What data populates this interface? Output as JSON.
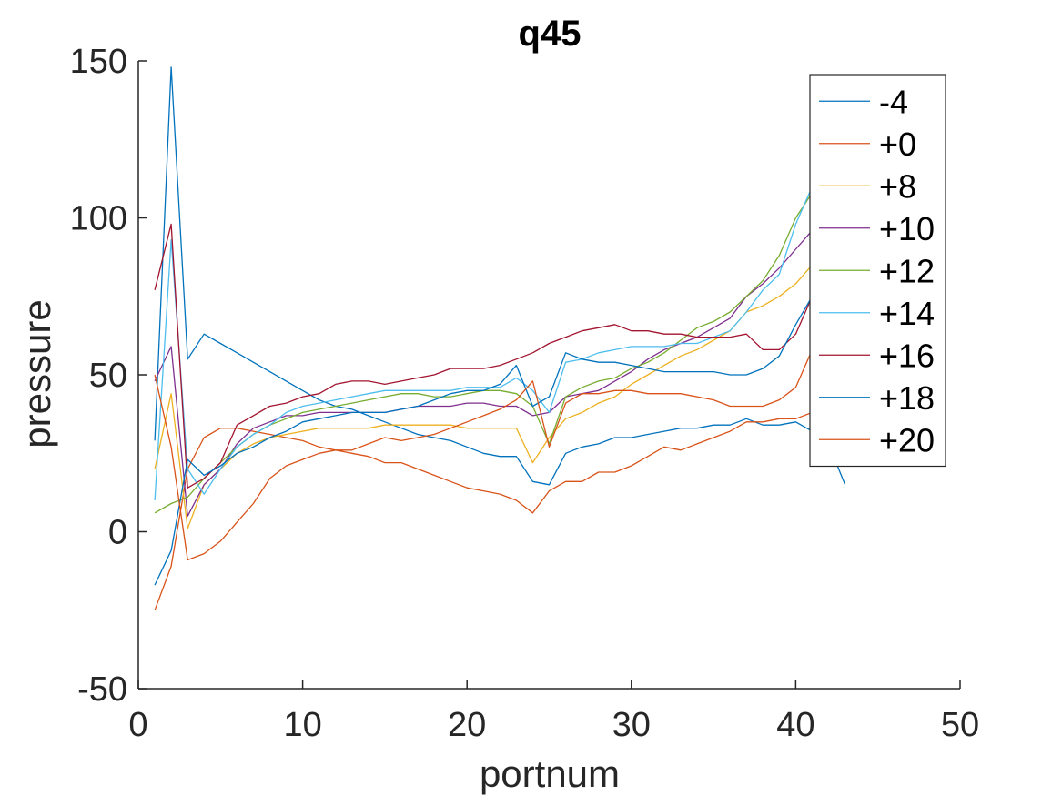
{
  "chart_data": {
    "type": "line",
    "title": "q45",
    "xlabel": "portnum",
    "ylabel": "pressure",
    "xlim": [
      0,
      50
    ],
    "ylim": [
      -50,
      150
    ],
    "xticks": [
      0,
      10,
      20,
      30,
      40,
      50
    ],
    "yticks": [
      -50,
      0,
      50,
      100,
      150
    ],
    "grid": false,
    "legend_position": "top-right",
    "series": [
      {
        "name": "-4",
        "color": "#0072BD",
        "x": [
          1,
          2,
          3,
          4,
          5,
          6,
          7,
          8,
          9,
          10,
          11,
          12,
          13,
          14,
          15,
          16,
          17,
          18,
          19,
          20,
          21,
          22,
          23,
          24,
          25,
          26,
          27,
          28,
          29,
          30,
          31,
          32,
          33,
          34,
          35,
          36,
          37,
          38,
          39,
          40,
          41,
          42,
          43
        ],
        "y": [
          29,
          148,
          55,
          63,
          60,
          57,
          54,
          51,
          48,
          45,
          42,
          40,
          39,
          37,
          35,
          33,
          31,
          30,
          29,
          27,
          25,
          24,
          24,
          16,
          15,
          25,
          27,
          28,
          30,
          30,
          31,
          32,
          33,
          33,
          34,
          34,
          36,
          34,
          34,
          35,
          32,
          28,
          15
        ]
      },
      {
        "name": "+0",
        "color": "#D95319",
        "x": [
          1,
          2,
          3,
          4,
          5,
          6,
          7,
          8,
          9,
          10,
          11,
          12,
          13,
          14,
          15,
          16,
          17,
          18,
          19,
          20,
          21,
          22,
          23,
          24,
          25,
          26,
          27,
          28,
          29,
          30,
          31,
          32,
          33,
          34,
          35,
          36,
          37,
          38,
          39,
          40,
          41
        ],
        "y": [
          -25,
          -11,
          20,
          30,
          33,
          33,
          32,
          31,
          30,
          29,
          27,
          26,
          25,
          24,
          22,
          22,
          20,
          18,
          16,
          14,
          13,
          12,
          10,
          6,
          13,
          16,
          16,
          19,
          19,
          21,
          24,
          27,
          26,
          28,
          30,
          32,
          35,
          35,
          36,
          36,
          38
        ]
      },
      {
        "name": "+8",
        "color": "#EDB120",
        "x": [
          1,
          2,
          3,
          4,
          5,
          6,
          7,
          8,
          9,
          10,
          11,
          12,
          13,
          14,
          15,
          16,
          17,
          18,
          19,
          20,
          21,
          22,
          23,
          24,
          25,
          26,
          27,
          28,
          29,
          30,
          31,
          32,
          33,
          34,
          35,
          36,
          37,
          38,
          39,
          40,
          41
        ],
        "y": [
          20,
          44,
          1,
          15,
          20,
          25,
          28,
          30,
          31,
          32,
          33,
          33,
          33,
          33,
          34,
          34,
          34,
          34,
          34,
          33,
          33,
          33,
          33,
          22,
          30,
          36,
          38,
          41,
          43,
          47,
          50,
          53,
          56,
          58,
          61,
          64,
          70,
          72,
          75,
          79,
          85
        ]
      },
      {
        "name": "+10",
        "color": "#7E2F8E",
        "x": [
          1,
          2,
          3,
          4,
          5,
          6,
          7,
          8,
          9,
          10,
          11,
          12,
          13,
          14,
          15,
          16,
          17,
          18,
          19,
          20,
          21,
          22,
          23,
          24,
          25,
          26,
          27,
          28,
          29,
          30,
          31,
          32,
          33,
          34,
          35,
          36,
          37,
          38,
          39,
          40,
          41
        ],
        "y": [
          48,
          59,
          5,
          15,
          20,
          28,
          33,
          35,
          37,
          37,
          38,
          38,
          38,
          38,
          38,
          39,
          40,
          40,
          40,
          41,
          41,
          40,
          40,
          37,
          38,
          43,
          44,
          45,
          48,
          51,
          55,
          58,
          60,
          62,
          65,
          68,
          75,
          79,
          84,
          90,
          96
        ]
      },
      {
        "name": "+12",
        "color": "#77AC30",
        "x": [
          1,
          2,
          3,
          4,
          5,
          6,
          7,
          8,
          9,
          10,
          11,
          12,
          13,
          14,
          15,
          16,
          17,
          18,
          19,
          20,
          21,
          22,
          23,
          24,
          25,
          26,
          27,
          28,
          29,
          30,
          31,
          32,
          33,
          34,
          35,
          36,
          37,
          38,
          39,
          40,
          41
        ],
        "y": [
          6,
          9,
          11,
          17,
          22,
          27,
          31,
          34,
          36,
          38,
          39,
          40,
          41,
          42,
          43,
          44,
          44,
          43,
          43,
          44,
          45,
          45,
          44,
          40,
          28,
          43,
          46,
          48,
          49,
          52,
          54,
          57,
          61,
          65,
          67,
          70,
          75,
          80,
          88,
          100,
          108
        ]
      },
      {
        "name": "+14",
        "color": "#4DBEEE",
        "x": [
          1,
          2,
          3,
          4,
          5,
          6,
          7,
          8,
          9,
          10,
          11,
          12,
          13,
          14,
          15,
          16,
          17,
          18,
          19,
          20,
          21,
          22,
          23,
          24,
          25,
          26,
          27,
          28,
          29,
          30,
          31,
          32,
          33,
          34,
          35,
          36,
          37,
          38,
          39,
          40,
          41
        ],
        "y": [
          10,
          93,
          20,
          12,
          20,
          27,
          31,
          34,
          38,
          40,
          41,
          42,
          43,
          44,
          45,
          45,
          45,
          45,
          45,
          46,
          46,
          46,
          49,
          45,
          38,
          54,
          55,
          57,
          58,
          59,
          59,
          59,
          60,
          60,
          62,
          64,
          70,
          77,
          82,
          98,
          110
        ]
      },
      {
        "name": "+16",
        "color": "#A2142F",
        "x": [
          1,
          2,
          3,
          4,
          5,
          6,
          7,
          8,
          9,
          10,
          11,
          12,
          13,
          14,
          15,
          16,
          17,
          18,
          19,
          20,
          21,
          22,
          23,
          24,
          25,
          26,
          27,
          28,
          29,
          30,
          31,
          32,
          33,
          34,
          35,
          36,
          37,
          38,
          39,
          40,
          41
        ],
        "y": [
          77,
          98,
          14,
          17,
          22,
          34,
          37,
          40,
          41,
          43,
          44,
          47,
          48,
          48,
          47,
          48,
          49,
          50,
          52,
          52,
          52,
          53,
          55,
          57,
          60,
          62,
          64,
          65,
          66,
          64,
          64,
          63,
          63,
          62,
          62,
          62,
          63,
          58,
          58,
          63,
          75
        ]
      },
      {
        "name": "+18",
        "color": "#0072BD",
        "x": [
          1,
          2,
          3,
          4,
          5,
          6,
          7,
          8,
          9,
          10,
          11,
          12,
          13,
          14,
          15,
          16,
          17,
          18,
          19,
          20,
          21,
          22,
          23,
          24,
          25,
          26,
          27,
          28,
          29,
          30,
          31,
          32,
          33,
          34,
          35,
          36,
          37,
          38,
          39,
          40,
          41
        ],
        "y": [
          -17,
          -6,
          23,
          18,
          21,
          25,
          27,
          30,
          32,
          35,
          36,
          37,
          38,
          38,
          38,
          39,
          40,
          42,
          44,
          45,
          45,
          47,
          53,
          40,
          43,
          57,
          55,
          54,
          54,
          53,
          52,
          51,
          51,
          51,
          51,
          50,
          50,
          52,
          56,
          66,
          75
        ]
      },
      {
        "name": "+20",
        "color": "#D95319",
        "x": [
          1,
          2,
          3,
          4,
          5,
          6,
          7,
          8,
          9,
          10,
          11,
          12,
          13,
          14,
          15,
          16,
          17,
          18,
          19,
          20,
          21,
          22,
          23,
          24,
          25,
          26,
          27,
          28,
          29,
          30,
          31,
          32,
          33,
          34,
          35,
          36,
          37,
          38,
          39,
          40,
          41
        ],
        "y": [
          50,
          27,
          -9,
          -7,
          -3,
          3,
          9,
          17,
          21,
          23,
          25,
          26,
          26,
          28,
          30,
          29,
          30,
          31,
          33,
          35,
          37,
          39,
          42,
          48,
          27,
          41,
          44,
          44,
          45,
          45,
          44,
          44,
          44,
          43,
          42,
          40,
          40,
          40,
          42,
          46,
          58
        ]
      }
    ]
  }
}
